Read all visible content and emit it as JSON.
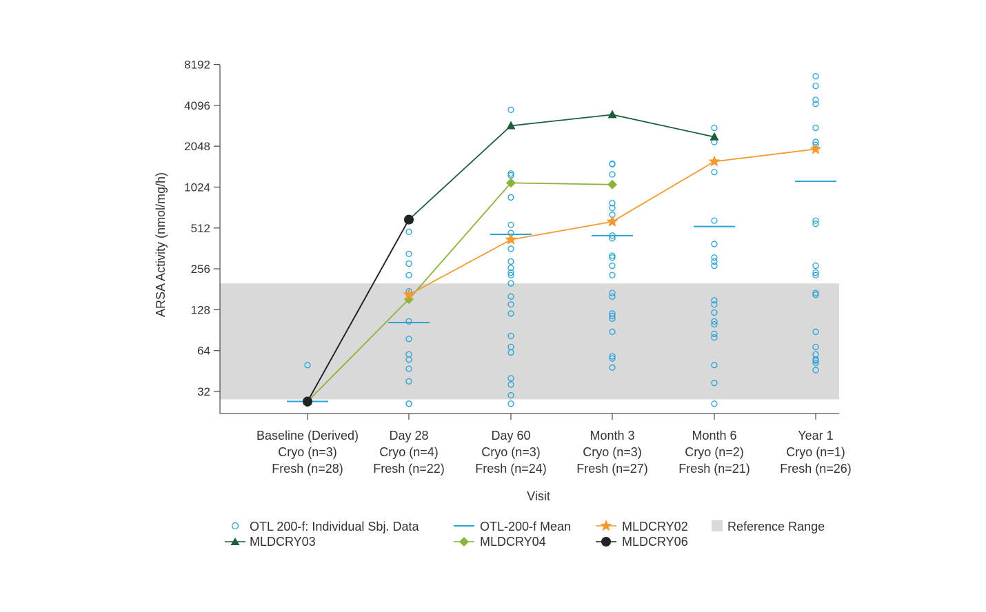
{
  "chart_data": {
    "type": "scatter",
    "title": "",
    "xlabel": "Visit",
    "ylabel": "ARSA Activity (nmol/mg/h)",
    "y_scale": "log2",
    "ylim": [
      22,
      8192
    ],
    "yticks": [
      "32",
      "64",
      "128",
      "256",
      "512",
      "1024",
      "2048",
      "4096",
      "8192"
    ],
    "reference_range": [
      28,
      200
    ],
    "categories": [
      {
        "line1": "Baseline (Derived)",
        "line2": "Cryo (n=3)",
        "line3": "Fresh (n=28)"
      },
      {
        "line1": "Day 28",
        "line2": "Cryo (n=4)",
        "line3": "Fresh (n=22)"
      },
      {
        "line1": "Day 60",
        "line2": "Cryo (n=3)",
        "line3": "Fresh (n=24)"
      },
      {
        "line1": "Month 3",
        "line2": "Cryo (n=3)",
        "line3": "Fresh (n=27)"
      },
      {
        "line1": "Month 6",
        "line2": "Cryo (n=2)",
        "line3": "Fresh (n=21)"
      },
      {
        "line1": "Year 1",
        "line2": "Cryo (n=1)",
        "line3": "Fresh (n=26)"
      }
    ],
    "individual": [
      [
        50,
        27,
        26
      ],
      [
        480,
        330,
        280,
        230,
        175,
        105,
        78,
        60,
        55,
        47,
        38,
        26,
        26
      ],
      [
        3800,
        1290,
        1250,
        860,
        540,
        470,
        360,
        290,
        260,
        240,
        230,
        200,
        160,
        140,
        120,
        82,
        68,
        62,
        40,
        36,
        30,
        26
      ],
      [
        1520,
        1510,
        1270,
        1070,
        780,
        720,
        640,
        450,
        430,
        320,
        310,
        270,
        230,
        170,
        160,
        120,
        115,
        110,
        88,
        58,
        56,
        48
      ],
      [
        2800,
        2200,
        1320,
        580,
        390,
        310,
        290,
        270,
        150,
        140,
        122,
        105,
        100,
        85,
        80,
        50,
        37,
        26
      ],
      [
        6700,
        5700,
        4500,
        4200,
        2800,
        2200,
        2100,
        580,
        550,
        270,
        240,
        230,
        170,
        165,
        88,
        68,
        60,
        55,
        54,
        52,
        46
      ]
    ],
    "mean": [
      27,
      103,
      460,
      450,
      525,
      1130
    ],
    "series": [
      {
        "name": "MLDCRY03",
        "color": "#1b5e3f",
        "marker": "triangle",
        "values": [
          27,
          590,
          2900,
          3500,
          2400,
          null
        ]
      },
      {
        "name": "MLDCRY04",
        "color": "#8db33a",
        "marker": "diamond",
        "values": [
          27,
          153,
          1100,
          1070,
          null,
          null
        ]
      },
      {
        "name": "MLDCRY02",
        "color": "#f39a32",
        "marker": "star",
        "values": [
          null,
          165,
          420,
          570,
          1580,
          1950
        ]
      },
      {
        "name": "MLDCRY06",
        "color": "#222222",
        "marker": "circle",
        "values": [
          27,
          590,
          null,
          null,
          null,
          null
        ]
      }
    ],
    "colors": {
      "individual": "#27a3d6",
      "mean": "#27a3d6",
      "reference": "#d9d9d9",
      "axis": "#555555"
    },
    "legend": {
      "placement": "bottom",
      "individual_label": "OTL 200-f: Individual Sbj. Data",
      "mean_label": "OTL-200-f Mean",
      "reference_label": "Reference Range",
      "mld02_label": "MLDCRY02",
      "mld03_label": "MLDCRY03",
      "mld04_label": "MLDCRY04",
      "mld06_label": "MLDCRY06"
    }
  }
}
